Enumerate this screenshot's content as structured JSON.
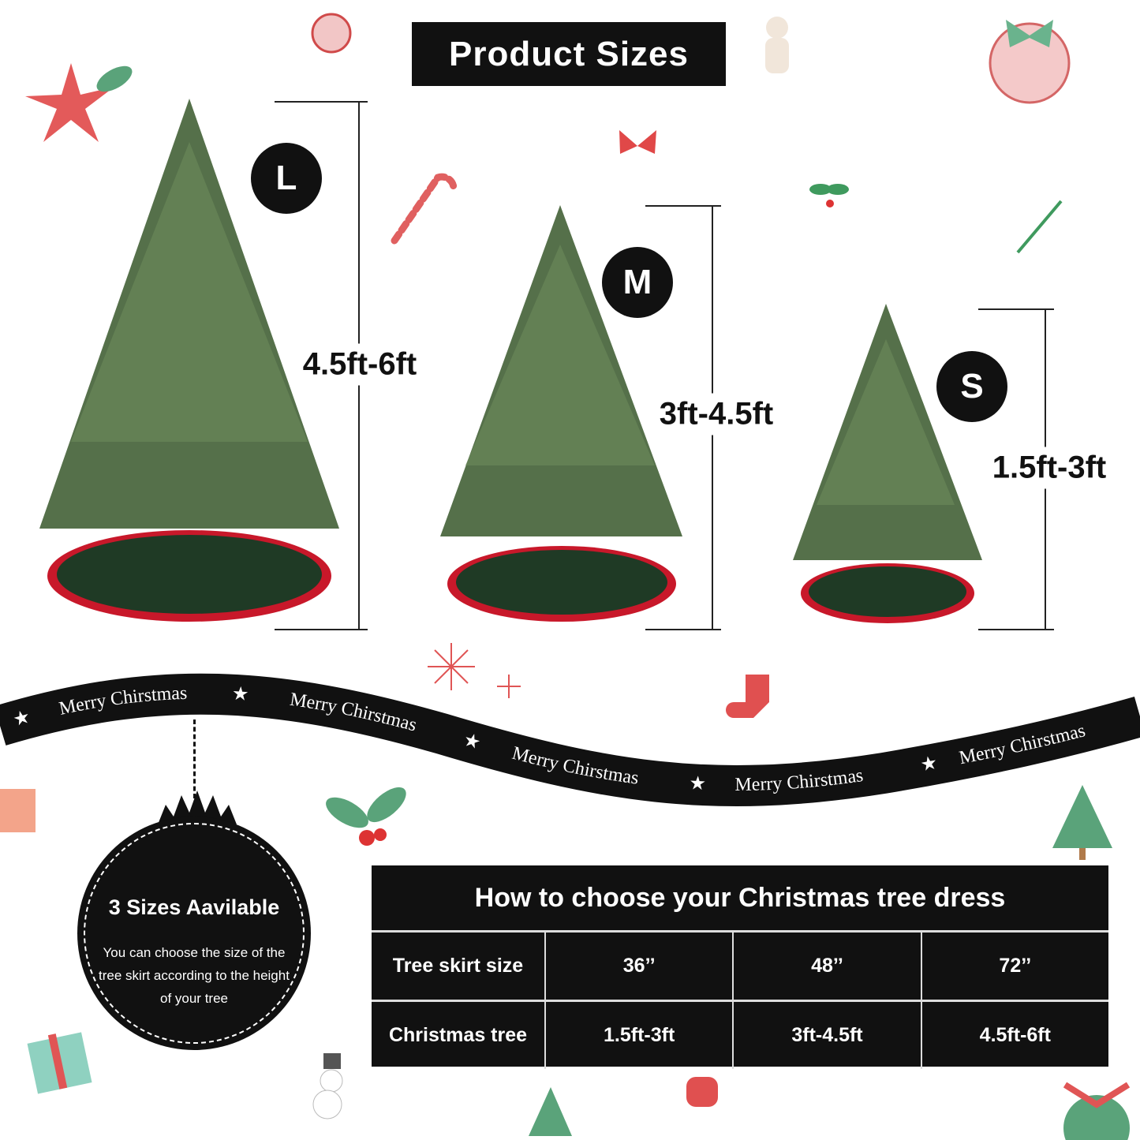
{
  "title": "Product Sizes",
  "sizes": [
    {
      "badge": "L",
      "range": "4.5ft-6ft"
    },
    {
      "badge": "M",
      "range": "3ft-4.5ft"
    },
    {
      "badge": "S",
      "range": "1.5ft-3ft"
    }
  ],
  "ribbon": {
    "text": "Merry Chirstmas",
    "star": "★"
  },
  "ornament": {
    "title": "3 Sizes Aavilable",
    "body": "You can choose the size of the tree skirt according to the height of your tree"
  },
  "table": {
    "header": "How to choose your Christmas tree dress",
    "rows": [
      {
        "label": "Tree skirt size",
        "values": [
          "36’’",
          "48’’",
          "72’’"
        ]
      },
      {
        "label": "Christmas tree",
        "values": [
          "1.5ft-3ft",
          "3ft-4.5ft",
          "4.5ft-6ft"
        ]
      }
    ]
  },
  "colors": {
    "tree": "#4f6b45",
    "skirt": "#1f3a25",
    "skirt_trim": "#c8182a",
    "dark": "#111111"
  }
}
